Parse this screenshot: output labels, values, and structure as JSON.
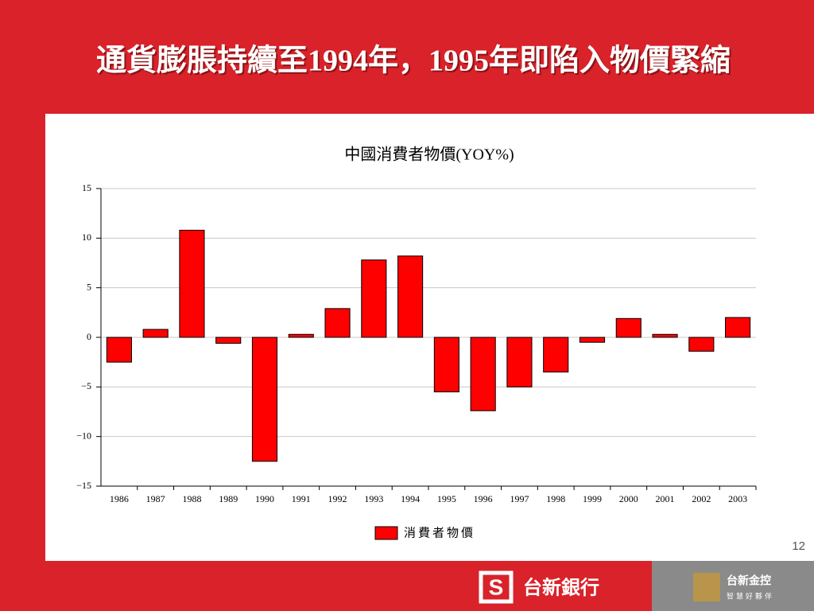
{
  "slide": {
    "title": "通貨膨脹持續至1994年，1995年即陷入物價緊縮",
    "page_number": "12",
    "footer": {
      "bank": "台新銀行",
      "holding": "台新金控",
      "slogan": "智慧好夥伴"
    }
  },
  "chart_data": {
    "type": "bar",
    "title": "中國消費者物價(YOY%)",
    "categories": [
      "1986",
      "1987",
      "1988",
      "1989",
      "1990",
      "1991",
      "1992",
      "1993",
      "1994",
      "1995",
      "1996",
      "1997",
      "1998",
      "1999",
      "2000",
      "2001",
      "2002",
      "2003"
    ],
    "series": [
      {
        "name": "消費者物價",
        "color": "#ff0000",
        "values": [
          -2.5,
          0.8,
          10.8,
          -0.6,
          -12.5,
          0.3,
          2.9,
          7.8,
          8.2,
          -5.5,
          -7.4,
          -5.0,
          -3.5,
          -0.5,
          1.9,
          0.3,
          -1.4,
          2.0
        ]
      }
    ],
    "ylim": [
      -15,
      15
    ],
    "yticks": [
      {
        "value": -15,
        "label": "−15"
      },
      {
        "value": -10,
        "label": "−10"
      },
      {
        "value": -5,
        "label": "−5"
      },
      0,
      5,
      10,
      15
    ],
    "grid": true,
    "legend": "bottom"
  }
}
